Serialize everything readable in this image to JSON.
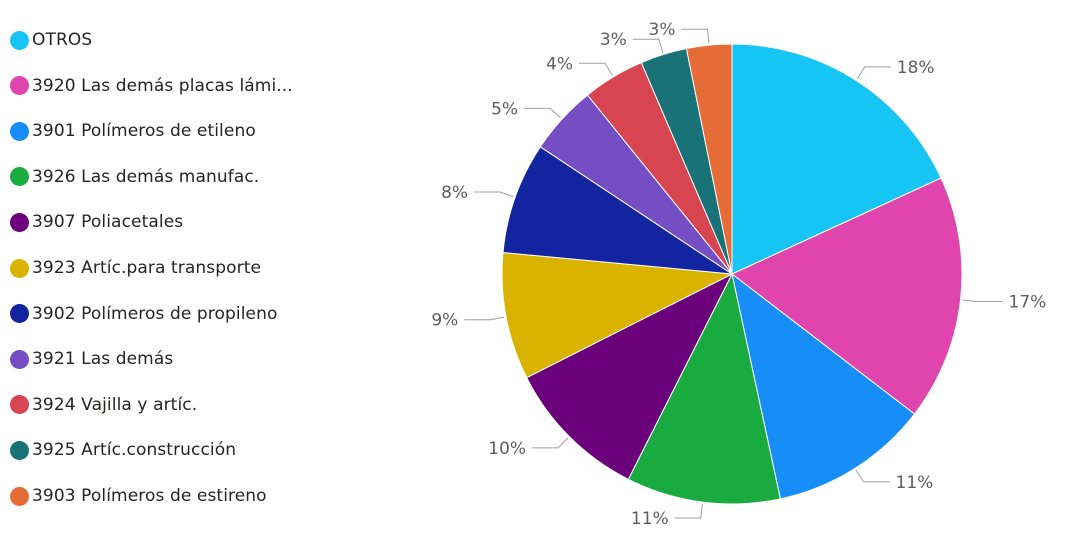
{
  "chart_data": {
    "type": "pie",
    "legend_position": "left",
    "slices": [
      {
        "label": "OTROS",
        "legend_label": "OTROS",
        "value_label": "18%",
        "value": 18.3,
        "color": "#17c5f5"
      },
      {
        "label": "3920 Las demás placas  lámi...",
        "legend_label": "3920 Las demás placas  lámi...",
        "value_label": "17%",
        "value": 17.4,
        "color": "#e045ad"
      },
      {
        "label": "3901 Polímeros de etileno",
        "legend_label": "3901 Polímeros de etileno",
        "value_label": "11%",
        "value": 11.3,
        "color": "#168df7"
      },
      {
        "label": "3926 Las demás manufac.",
        "legend_label": "3926 Las demás manufac.",
        "value_label": "11%",
        "value": 10.9,
        "color": "#1aab40"
      },
      {
        "label": "3907 Poliacetales",
        "legend_label": "3907 Poliacetales",
        "value_label": "10%",
        "value": 10.2,
        "color": "#6b007b"
      },
      {
        "label": "3923 Artíc.para transporte",
        "legend_label": "3923 Artíc.para transporte",
        "value_label": "9%",
        "value": 9.0,
        "color": "#d9b300"
      },
      {
        "label": "3902 Polímeros de propileno",
        "legend_label": "3902 Polímeros de propileno",
        "value_label": "8%",
        "value": 7.9,
        "color": "#1224a0"
      },
      {
        "label": "3921 Las demás",
        "legend_label": "3921 Las demás",
        "value_label": "5%",
        "value": 4.9,
        "color": "#744ec2"
      },
      {
        "label": "3924 Vajilla y  artíc.",
        "legend_label": "3924 Vajilla y  artíc.",
        "value_label": "4%",
        "value": 4.4,
        "color": "#d64550"
      },
      {
        "label": "3925 Artíc.construcción",
        "legend_label": "3925 Artíc.construcción",
        "value_label": "3%",
        "value": 3.3,
        "color": "#197278"
      },
      {
        "label": "3903 Polímeros de estireno",
        "legend_label": "3903 Polímeros de estireno",
        "value_label": "3%",
        "value": 3.2,
        "color": "#e66c37"
      }
    ]
  }
}
